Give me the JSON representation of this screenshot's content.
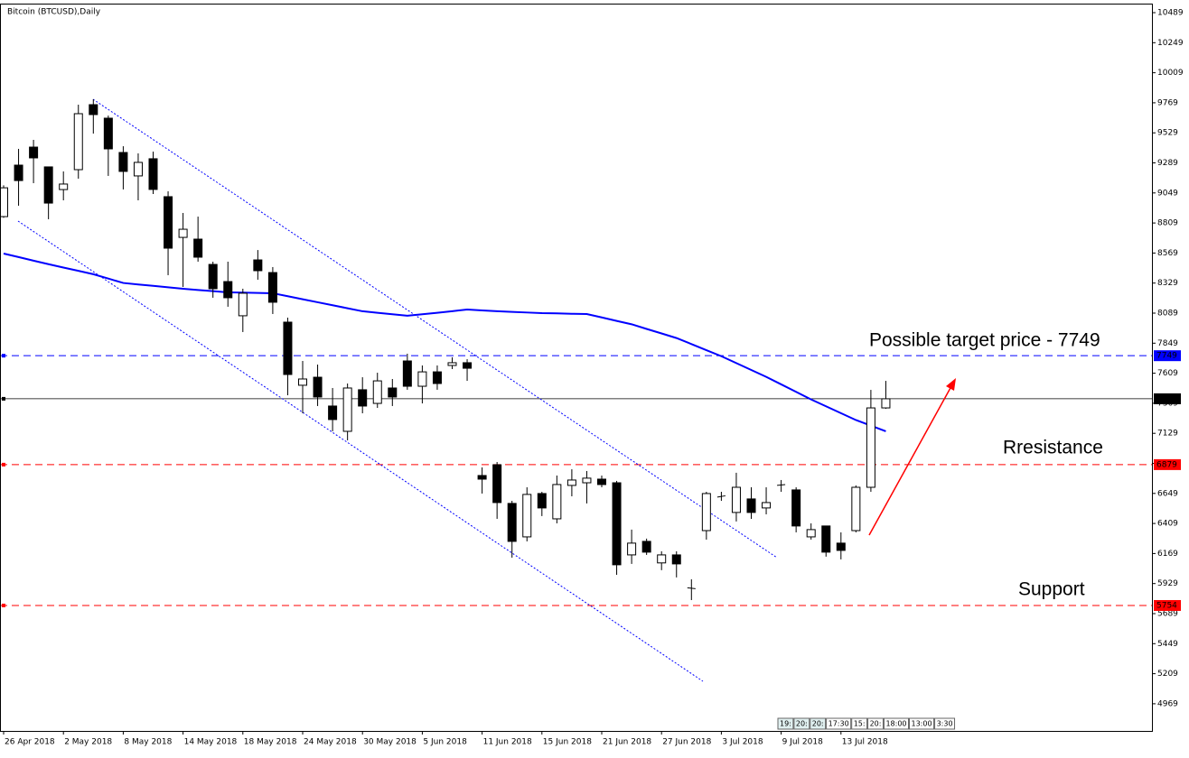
{
  "chart_data": {
    "type": "candlestick",
    "title": "Bitcoin (BTCUSD),Daily",
    "categories": [
      "26 Apr 2018",
      null,
      null,
      null,
      "2 May 2018",
      null,
      null,
      null,
      "8 May 2018",
      null,
      null,
      null,
      "14 May 2018",
      null,
      null,
      null,
      "18 May 2018",
      null,
      null,
      null,
      "24 May 2018",
      null,
      null,
      null,
      "30 May 2018",
      null,
      null,
      null,
      "5 Jun 2018",
      null,
      null,
      null,
      "11 Jun 2018",
      null,
      null,
      null,
      "15 Jun 2018",
      null,
      null,
      null,
      "21 Jun 2018",
      null,
      null,
      null,
      "27 Jun 2018",
      null,
      null,
      null,
      "3 Jul 2018",
      null,
      null,
      null,
      "9 Jul 2018",
      null,
      null,
      null,
      "13 Jul 2018",
      null,
      null,
      null
    ],
    "open": [
      8860,
      9271,
      9415,
      9257,
      9076,
      9235,
      9754,
      9646,
      9372,
      9185,
      9322,
      9019,
      8694,
      8680,
      8478,
      8341,
      8068,
      8514,
      8413,
      8017,
      7513,
      7577,
      7347,
      7145,
      7477,
      7368,
      7491,
      7707,
      7505,
      7620,
      7671,
      7693,
      6792,
      6878,
      6569,
      6302,
      6648,
      6446,
      6713,
      6734,
      6763,
      6734,
      6158,
      6266,
      6094,
      6158,
      5895,
      6352,
      6620,
      6497,
      6605,
      6533,
      6713,
      6677,
      6302,
      6389,
      6252,
      6352,
      6698,
      7332
    ],
    "high": [
      9110,
      9401,
      9473,
      9260,
      9221,
      9754,
      9797,
      9667,
      9422,
      9365,
      9379,
      9062,
      8889,
      8860,
      8500,
      8500,
      8284,
      8593,
      8457,
      8053,
      7707,
      7678,
      7491,
      7527,
      7577,
      7613,
      7563,
      7765,
      7671,
      7671,
      7736,
      7721,
      6857,
      6900,
      6590,
      6698,
      6662,
      6792,
      6842,
      6828,
      6792,
      6749,
      6360,
      6288,
      6187,
      6187,
      5963,
      6662,
      6662,
      6814,
      6698,
      6698,
      6756,
      6698,
      6410,
      6389,
      6338,
      6713,
      7476,
      7548
    ],
    "low": [
      8850,
      8947,
      9127,
      8839,
      8990,
      9163,
      9523,
      9185,
      9077,
      8990,
      9040,
      8392,
      8298,
      8500,
      8212,
      8140,
      7938,
      8356,
      8082,
      7433,
      7289,
      7347,
      7145,
      7073,
      7289,
      7332,
      7347,
      7477,
      7368,
      7477,
      7642,
      7548,
      6648,
      6446,
      6136,
      6266,
      6468,
      6410,
      6626,
      6569,
      6698,
      5999,
      6086,
      6158,
      6036,
      5978,
      5797,
      6280,
      6590,
      6425,
      6446,
      6482,
      6662,
      6338,
      6280,
      6144,
      6122,
      6338,
      6662,
      7325
    ],
    "close": [
      9090,
      9148,
      9329,
      8968,
      9120,
      9682,
      9675,
      9401,
      9221,
      9293,
      9077,
      8608,
      8759,
      8536,
      8284,
      8212,
      8248,
      8428,
      8176,
      7599,
      7563,
      7419,
      7239,
      7491,
      7347,
      7548,
      7419,
      7505,
      7620,
      7527,
      7693,
      7649,
      6763,
      6576,
      6266,
      6641,
      6533,
      6720,
      6756,
      6771,
      6720,
      6079,
      6252,
      6180,
      6158,
      6086,
      5888,
      6648,
      6630,
      6698,
      6497,
      6576,
      6720,
      6389,
      6360,
      6180,
      6194,
      6698,
      7332,
      7405
    ],
    "up_color": "#ffffff",
    "down_color": "#000000",
    "ma": {
      "color": "#0000ff",
      "values": [
        8565,
        8537,
        8508,
        8480,
        8453,
        8427,
        8400,
        8365,
        8330,
        8318,
        8307,
        8295,
        8284,
        8274,
        8265,
        8255,
        8253,
        8250,
        8248,
        8224,
        8200,
        8176,
        8152,
        8128,
        8104,
        8092,
        8080,
        8068,
        8080,
        8092,
        8104,
        8118,
        8111,
        8104,
        8099,
        8094,
        8089,
        8087,
        8084,
        8082,
        8055,
        8027,
        8000,
        7963,
        7927,
        7890,
        7842,
        7793,
        7745,
        7690,
        7635,
        7580,
        7520,
        7460,
        7400,
        7345,
        7290,
        7235,
        7190,
        7145
      ]
    },
    "levels": [
      {
        "value": 7749,
        "color": "#0000ff",
        "dashed": true
      },
      {
        "value": 7405,
        "color": "#000000",
        "dashed": false
      },
      {
        "value": 6879,
        "color": "#ff0000",
        "dashed": true
      },
      {
        "value": 5754,
        "color": "#ff0000",
        "dashed": true
      }
    ],
    "annotations": [
      "Possible target price - 7749",
      "Rresistance",
      "Support"
    ],
    "indicator_boxes": [
      "19:",
      "20:",
      "20:",
      "17:30",
      "15:",
      "20:",
      "18:00",
      "13:00",
      "3:30"
    ],
    "ylim": [
      4752,
      10554
    ],
    "yticks": [
      10489,
      10249,
      10009,
      9769,
      9529,
      9289,
      9049,
      8809,
      8569,
      8329,
      8089,
      7849,
      7609,
      7369,
      7129,
      6889,
      6649,
      6409,
      6169,
      5929,
      5689,
      5449,
      5209,
      4969
    ]
  }
}
